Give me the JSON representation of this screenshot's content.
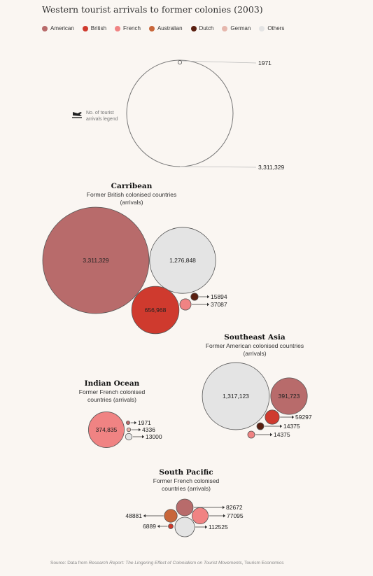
{
  "title": "Western tourist arrivals to former colonies (2003)",
  "colors": {
    "American": "#b86b6b",
    "British": "#cf3a2e",
    "French": "#f08383",
    "Australian": "#c8663a",
    "Dutch": "#5a1f10",
    "German": "#e6b7ad",
    "Others": "#e4e4e4"
  },
  "legend": [
    "American",
    "British",
    "French",
    "Australian",
    "Dutch",
    "German",
    "Others"
  ],
  "size_legend": {
    "label_line1": "No. of tourist",
    "label_line2": "arrivals legend",
    "min_label": "1971",
    "max_label": "3,311,329",
    "min_value": 1971,
    "max_value": 3311329
  },
  "chart_data": [
    {
      "type": "bubble",
      "title": "Carribean",
      "subtitle_lines": [
        "Former British colonised countries",
        "(arrivals)"
      ],
      "points": [
        {
          "category": "American",
          "value": 3311329,
          "label": "3,311,329",
          "label_inside": true
        },
        {
          "category": "Others",
          "value": 1276848,
          "label": "1,276,848",
          "label_inside": true
        },
        {
          "category": "British",
          "value": 656968,
          "label": "656,968",
          "label_inside": true
        },
        {
          "category": "Dutch",
          "value": 15894,
          "label": "15894",
          "label_inside": false
        },
        {
          "category": "French",
          "value": 37087,
          "label": "37087",
          "label_inside": false
        }
      ]
    },
    {
      "type": "bubble",
      "title": "Southeast Asia",
      "subtitle_lines": [
        "Former American colonised countries",
        "(arrivals)"
      ],
      "points": [
        {
          "category": "Others",
          "value": 1317123,
          "label": "1,317,123",
          "label_inside": true
        },
        {
          "category": "American",
          "value": 391723,
          "label": "391,723",
          "label_inside": true
        },
        {
          "category": "British",
          "value": 59297,
          "label": "59297",
          "label_inside": false
        },
        {
          "category": "Dutch",
          "value": 14375,
          "label": "14375",
          "label_inside": false
        },
        {
          "category": "French",
          "value": 14375,
          "label": "14375",
          "label_inside": false
        }
      ]
    },
    {
      "type": "bubble",
      "title": "Indian Ocean",
      "subtitle_lines": [
        "Former French colonised",
        "countries (arrivals)"
      ],
      "points": [
        {
          "category": "French",
          "value": 374835,
          "label": "374,835",
          "label_inside": true
        },
        {
          "category": "American",
          "value": 1971,
          "label": "1971",
          "label_inside": false
        },
        {
          "category": "German",
          "value": 4336,
          "label": "4336",
          "label_inside": false
        },
        {
          "category": "Others",
          "value": 13000,
          "label": "13000",
          "label_inside": false
        }
      ]
    },
    {
      "type": "bubble",
      "title": "South Pacific",
      "subtitle_lines": [
        "Former French colonised",
        "countries (arrivals)"
      ],
      "points": [
        {
          "category": "American",
          "value": 82672,
          "label": "82672",
          "label_inside": false
        },
        {
          "category": "Australian",
          "value": 48881,
          "label": "48881",
          "label_inside": false
        },
        {
          "category": "French",
          "value": 77095,
          "label": "77095",
          "label_inside": false
        },
        {
          "category": "British",
          "value": 6889,
          "label": "6889",
          "label_inside": false
        },
        {
          "category": "Others",
          "value": 112525,
          "label": "112525",
          "label_inside": false
        }
      ]
    }
  ],
  "source": {
    "prefix": "Source: Data from ",
    "report": "Research Report: The Lingering Effect of Colonialism on Tourist Movements",
    "suffix": ", Tourism Economics"
  }
}
